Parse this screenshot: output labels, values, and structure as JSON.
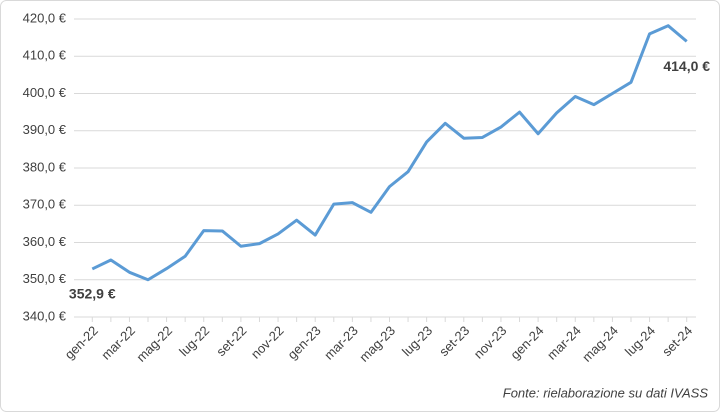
{
  "chart_data": {
    "type": "line",
    "source": "Fonte: rielaborazione su dati IVASS",
    "categories": [
      "gen-22",
      null,
      "mar-22",
      null,
      "mag-22",
      null,
      "lug-22",
      null,
      "set-22",
      null,
      "nov-22",
      null,
      "gen-23",
      null,
      "mar-23",
      null,
      "mag-23",
      null,
      "lug-23",
      null,
      "set-23",
      null,
      "nov-23",
      null,
      "gen-24",
      null,
      "mar-24",
      null,
      "mag-24",
      null,
      "lug-24",
      null,
      "set-24"
    ],
    "values": [
      352.9,
      355.3,
      352,
      350,
      353,
      356.3,
      363.2,
      363.1,
      359,
      359.7,
      362.3,
      366,
      362,
      370.3,
      370.7,
      368.1,
      375,
      379,
      387,
      392,
      388,
      388.2,
      391,
      395,
      389.2,
      394.8,
      399.2,
      397,
      400,
      403,
      416,
      418.2,
      414
    ],
    "value_labels": [
      "352,9 €",
      null,
      null,
      null,
      null,
      null,
      null,
      null,
      null,
      null,
      null,
      null,
      null,
      null,
      null,
      null,
      null,
      null,
      null,
      null,
      null,
      null,
      null,
      null,
      null,
      null,
      null,
      null,
      null,
      null,
      null,
      null,
      "414,0 €"
    ],
    "color": "#5b9bd5",
    "ylim": [
      340,
      420
    ],
    "yticks": [
      {
        "value": 340,
        "label": "340,0 €"
      },
      {
        "value": 350,
        "label": "350,0 €"
      },
      {
        "value": 360,
        "label": "360,0 €"
      },
      {
        "value": 370,
        "label": "370,0 €"
      },
      {
        "value": 380,
        "label": "380,0 €"
      },
      {
        "value": 390,
        "label": "390,0 €"
      },
      {
        "value": 400,
        "label": "400,0 €"
      },
      {
        "value": 410,
        "label": "410,0 €"
      },
      {
        "value": 420,
        "label": "420,0 €"
      }
    ],
    "grid": true
  }
}
